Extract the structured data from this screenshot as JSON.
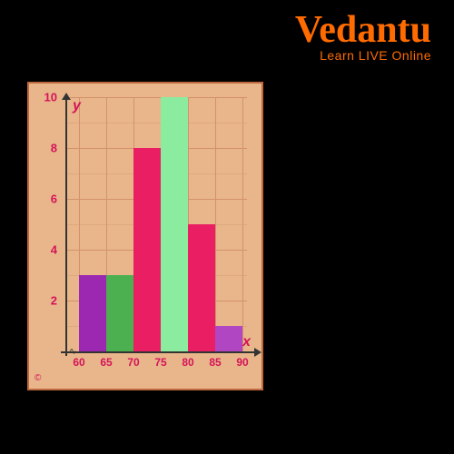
{
  "logo": {
    "main": "Vedantu",
    "sub": "Learn LIVE Online"
  },
  "chart": {
    "type": "histogram",
    "background_color": "#e8b68a",
    "border_color": "#c06840",
    "grid_color": "#d4916b",
    "axis_color": "#333333",
    "label_color": "#d4145a",
    "x_axis_label": "x",
    "y_axis_label": "y",
    "ylim": [
      0,
      10
    ],
    "ytick_step": 2,
    "yticks": [
      2,
      4,
      6,
      8,
      10
    ],
    "xticks": [
      60,
      65,
      70,
      75,
      80,
      85,
      90
    ],
    "bars": [
      {
        "x_start": 60,
        "x_end": 65,
        "value": 3,
        "color": "#9c27b0"
      },
      {
        "x_start": 65,
        "x_end": 70,
        "value": 3,
        "color": "#4caf50"
      },
      {
        "x_start": 70,
        "x_end": 75,
        "value": 8,
        "color": "#e91e63"
      },
      {
        "x_start": 75,
        "x_end": 80,
        "value": 10,
        "color": "#8bec9f"
      },
      {
        "x_start": 80,
        "x_end": 85,
        "value": 5,
        "color": "#e91e63"
      },
      {
        "x_start": 85,
        "x_end": 90,
        "value": 1,
        "color": "#b146c2"
      }
    ],
    "copyright": "©"
  }
}
